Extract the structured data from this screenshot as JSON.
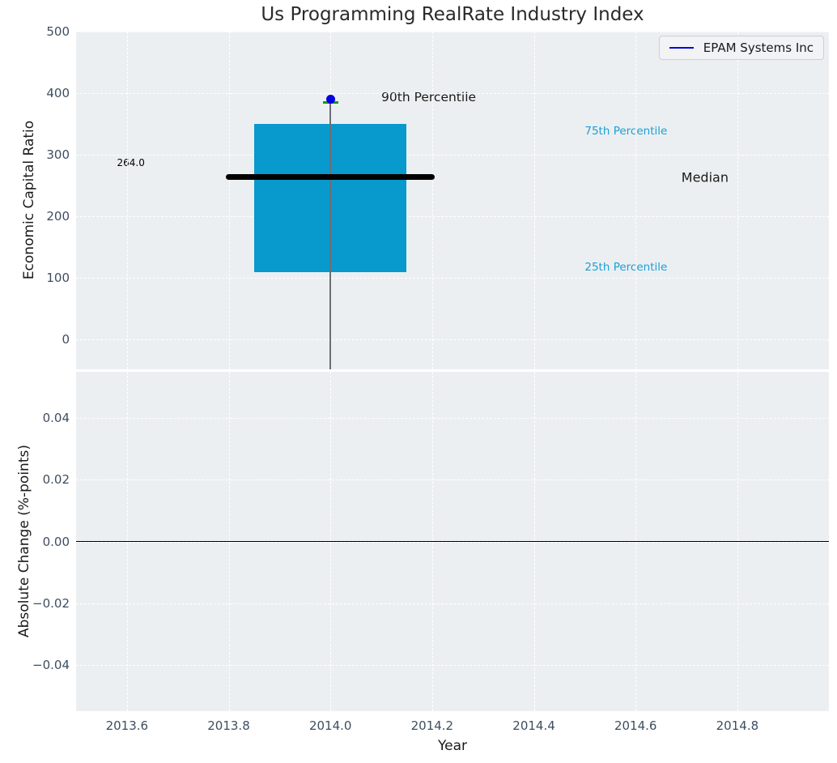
{
  "title": "Us Programming RealRate Industry Index",
  "legend": {
    "label": "EPAM Systems Inc",
    "line_color": "#0202dd"
  },
  "colors": {
    "figure_bg": "#ffffff",
    "axes_bg": "#eceff1",
    "grid": "#ffffff",
    "box_fill": "#0899cd",
    "median_line": "#000000",
    "p90_cap": "#0f9d0f",
    "company_marker": "#0202dd",
    "stem_line": "#6b7074",
    "tick_label": "#3e4e60",
    "text": "#1a1a1a",
    "percentile_label": "#1b9fd6",
    "zero_line": "#000000"
  },
  "chart_data": [
    {
      "type": "box",
      "title": "Us Programming RealRate Industry Index",
      "ylabel": "Economic Capital Ratio",
      "grid": true,
      "legend_position": "upper right",
      "xlim": [
        2013.5,
        2014.98
      ],
      "ylim": [
        -48,
        500
      ],
      "x": 2014.0,
      "box_width": 0.3,
      "median_halfwidth": 0.205,
      "cap_halfwidth": 0.015,
      "stats": {
        "p25": 110,
        "median": 264,
        "p75": 350,
        "p90": 385
      },
      "company_point": {
        "name": "EPAM Systems Inc",
        "x": 2014.0,
        "y": 390
      },
      "yticks": [
        {
          "v": 500,
          "label": "500"
        },
        {
          "v": 400,
          "label": "400"
        },
        {
          "v": 300,
          "label": "300"
        },
        {
          "v": 200,
          "label": "200"
        },
        {
          "v": 100,
          "label": "100"
        },
        {
          "v": 0,
          "label": "0"
        }
      ],
      "xticks": [
        {
          "v": 2013.6,
          "label": "2013.6"
        },
        {
          "v": 2013.8,
          "label": "2013.8"
        },
        {
          "v": 2014.0,
          "label": "2014.0"
        },
        {
          "v": 2014.2,
          "label": "2014.2"
        },
        {
          "v": 2014.4,
          "label": "2014.4"
        },
        {
          "v": 2014.6,
          "label": "2014.6"
        },
        {
          "v": 2014.8,
          "label": "2014.8"
        }
      ],
      "annotations": [
        {
          "text": "264.0",
          "x": 2013.635,
          "y": 287,
          "color": "#000000",
          "size": 12,
          "ha": "right"
        },
        {
          "text": "90th Percentile",
          "x": 2014.1,
          "y": 394,
          "color": "#1a1a1a",
          "size": 15.5,
          "ha": "left"
        },
        {
          "text": "75th Percentile",
          "x": 2014.5,
          "y": 338,
          "color": "#1b9fd6",
          "size": 13.5,
          "ha": "left"
        },
        {
          "text": "Median",
          "x": 2014.69,
          "y": 264,
          "color": "#1a1a1a",
          "size": 16,
          "ha": "left"
        },
        {
          "text": "25th Percentile",
          "x": 2014.5,
          "y": 118,
          "color": "#1b9fd6",
          "size": 13.5,
          "ha": "left"
        }
      ]
    },
    {
      "type": "line",
      "ylabel": "Absolute Change (%-points)",
      "xlabel": "Year",
      "grid": true,
      "xlim": [
        2013.5,
        2014.98
      ],
      "ylim": [
        -0.055,
        0.055
      ],
      "zero_line": true,
      "series": [],
      "yticks": [
        {
          "v": 0.04,
          "label": "0.04"
        },
        {
          "v": 0.02,
          "label": "0.02"
        },
        {
          "v": 0.0,
          "label": "0.00"
        },
        {
          "v": -0.02,
          "label": "−0.02"
        },
        {
          "v": -0.04,
          "label": "−0.04"
        }
      ],
      "xticks": [
        {
          "v": 2013.6,
          "label": "2013.6"
        },
        {
          "v": 2013.8,
          "label": "2013.8"
        },
        {
          "v": 2014.0,
          "label": "2014.0"
        },
        {
          "v": 2014.2,
          "label": "2014.2"
        },
        {
          "v": 2014.4,
          "label": "2014.4"
        },
        {
          "v": 2014.6,
          "label": "2014.6"
        },
        {
          "v": 2014.8,
          "label": "2014.8"
        }
      ]
    }
  ]
}
